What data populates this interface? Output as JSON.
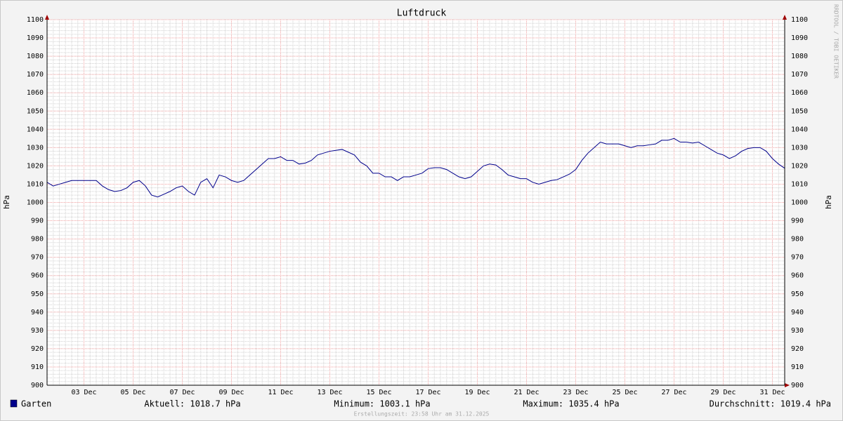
{
  "chart_data": {
    "type": "line",
    "title": "Luftdruck",
    "y_label": "hPa",
    "watermark": "RRDTOOL / TOBI OETIKER",
    "xlim": [
      0,
      120
    ],
    "xticks": [
      {
        "value": 6,
        "label": "03 Dec"
      },
      {
        "value": 14,
        "label": "05 Dec"
      },
      {
        "value": 22,
        "label": "07 Dec"
      },
      {
        "value": 30,
        "label": "09 Dec"
      },
      {
        "value": 38,
        "label": "11 Dec"
      },
      {
        "value": 46,
        "label": "13 Dec"
      },
      {
        "value": 54,
        "label": "15 Dec"
      },
      {
        "value": 62,
        "label": "17 Dec"
      },
      {
        "value": 70,
        "label": "19 Dec"
      },
      {
        "value": 78,
        "label": "21 Dec"
      },
      {
        "value": 86,
        "label": "23 Dec"
      },
      {
        "value": 94,
        "label": "25 Dec"
      },
      {
        "value": 102,
        "label": "27 Dec"
      },
      {
        "value": 110,
        "label": "29 Dec"
      },
      {
        "value": 118,
        "label": "31 Dec"
      }
    ],
    "ylim": [
      900,
      1100
    ],
    "yticks": [
      900,
      910,
      920,
      930,
      940,
      950,
      960,
      970,
      980,
      990,
      1000,
      1010,
      1020,
      1030,
      1040,
      1050,
      1060,
      1070,
      1080,
      1090,
      1100
    ],
    "grid": true,
    "series": [
      {
        "name": "Garten",
        "color": "#00008b",
        "values": [
          1011,
          1009,
          1010,
          1011,
          1012,
          1012,
          1012,
          1012,
          1012,
          1009,
          1007,
          1006,
          1006.5,
          1008,
          1011,
          1012,
          1009,
          1004,
          1003,
          1004.5,
          1006,
          1008,
          1009,
          1006,
          1004,
          1011,
          1013,
          1008,
          1015,
          1014,
          1012,
          1011,
          1012,
          1015,
          1018,
          1021,
          1024,
          1024,
          1025,
          1023,
          1023,
          1021,
          1021.5,
          1023,
          1026,
          1027,
          1028,
          1028.5,
          1029,
          1027.5,
          1026,
          1022,
          1020,
          1016,
          1016,
          1014,
          1014,
          1012,
          1014,
          1014,
          1015,
          1016,
          1018.5,
          1019,
          1019,
          1018,
          1016,
          1014,
          1013,
          1014,
          1017,
          1020,
          1021,
          1020.5,
          1018,
          1015,
          1014,
          1013,
          1013,
          1011,
          1010,
          1011,
          1012,
          1012.5,
          1014,
          1015.5,
          1018,
          1023,
          1027,
          1030,
          1033,
          1032,
          1032,
          1032,
          1031,
          1030,
          1031,
          1031,
          1031.5,
          1032,
          1034,
          1034,
          1035,
          1033,
          1033,
          1032.5,
          1033,
          1031,
          1029,
          1027,
          1026,
          1024,
          1025.5,
          1028,
          1029.5,
          1030,
          1030,
          1028,
          1024,
          1021,
          1018.7
        ]
      }
    ],
    "stats": [
      "Aktuell: 1018.7 hPa",
      "Minimum: 1003.1 hPa",
      "Maximum: 1035.4 hPa",
      "Durchschnitt: 1019.4 hPa"
    ],
    "footer": "Erstellungszeit: 23:58 Uhr am 31.12.2025"
  }
}
